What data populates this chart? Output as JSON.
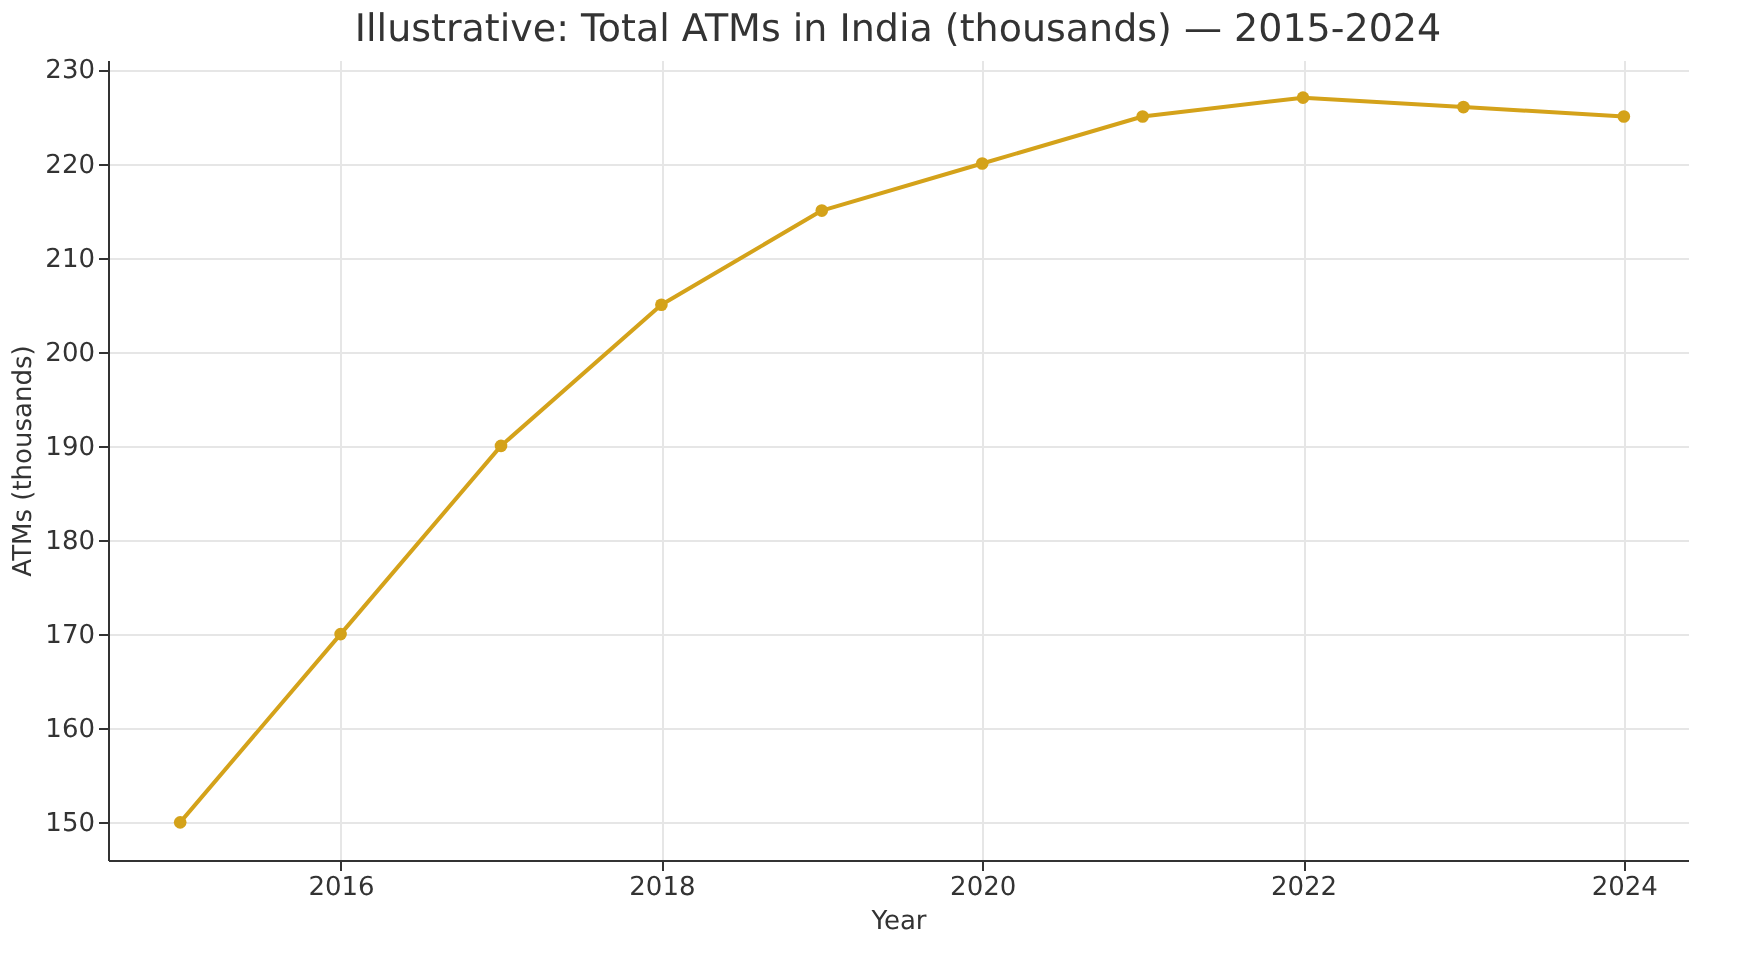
{
  "chart_data": {
    "type": "line",
    "title": "Illustrative: Total ATMs in India (thousands) — 2015-2024",
    "xlabel": "Year",
    "ylabel": "ATMs (thousands)",
    "x": [
      2015,
      2016,
      2017,
      2018,
      2019,
      2020,
      2021,
      2022,
      2023,
      2024
    ],
    "series": [
      {
        "color": "#d4a21a",
        "values": [
          150,
          170,
          190,
          205,
          215,
          220,
          225,
          227,
          226,
          225
        ]
      }
    ],
    "xlim": [
      2014.55,
      2024.4
    ],
    "xticks": [
      2016,
      2018,
      2020,
      2022,
      2024
    ],
    "ylim": [
      146,
      231
    ],
    "yticks": [
      150,
      160,
      170,
      180,
      190,
      200,
      210,
      220,
      230
    ],
    "grid": true,
    "marker": "circle",
    "line_style": "solid"
  }
}
